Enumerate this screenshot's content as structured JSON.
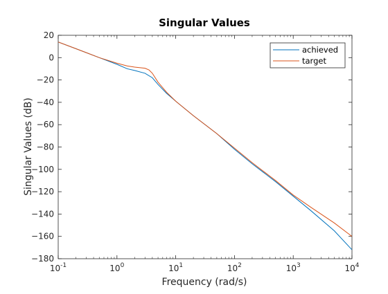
{
  "chart_data": {
    "type": "line",
    "title": "Singular Values",
    "xlabel": "Frequency (rad/s)",
    "ylabel": "Singular Values (dB)",
    "xscale": "log",
    "xlim": [
      0.1,
      10000
    ],
    "ylim": [
      -180,
      20
    ],
    "x_ticks": [
      {
        "value": 0.1,
        "base": "10",
        "exp": "-1"
      },
      {
        "value": 1,
        "base": "10",
        "exp": "0"
      },
      {
        "value": 10,
        "base": "10",
        "exp": "1"
      },
      {
        "value": 100,
        "base": "10",
        "exp": "2"
      },
      {
        "value": 1000,
        "base": "10",
        "exp": "3"
      },
      {
        "value": 10000,
        "base": "10",
        "exp": "4"
      }
    ],
    "y_ticks": [
      20,
      0,
      -20,
      -40,
      -60,
      -80,
      -100,
      -120,
      -140,
      -160,
      -180
    ],
    "grid": false,
    "legend_position": "top-right",
    "series": [
      {
        "name": "achieved",
        "color": "#0072BD",
        "x": [
          0.1,
          0.2,
          0.5,
          1,
          1.5,
          2,
          3,
          4,
          5,
          7,
          10,
          20,
          50,
          100,
          200,
          500,
          1000,
          2000,
          5000,
          10000
        ],
        "y": [
          14,
          8,
          0,
          -6,
          -10,
          -11.5,
          -14,
          -18,
          -24,
          -32,
          -39,
          -52,
          -68,
          -82,
          -95,
          -111,
          -124,
          -137,
          -155,
          -172
        ]
      },
      {
        "name": "target",
        "color": "#D95319",
        "x": [
          0.1,
          0.2,
          0.5,
          1,
          1.5,
          2,
          3,
          3.5,
          4,
          5,
          7,
          10,
          20,
          50,
          100,
          200,
          500,
          1000,
          2000,
          5000,
          10000
        ],
        "y": [
          14,
          8,
          0,
          -5,
          -7.5,
          -8.5,
          -9.5,
          -11,
          -14,
          -22,
          -31,
          -39,
          -52,
          -68,
          -81,
          -94,
          -110,
          -123,
          -134,
          -148,
          -160
        ]
      }
    ]
  }
}
